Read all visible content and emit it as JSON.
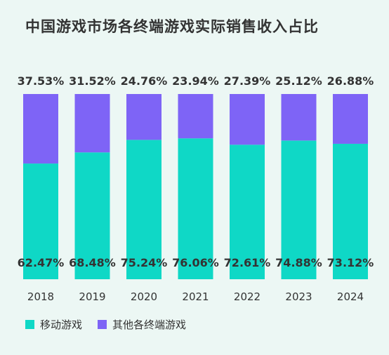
{
  "chart_data": {
    "type": "bar",
    "stacked": true,
    "title": "中国游戏市场各终端游戏实际销售收入占比",
    "categories": [
      "2018",
      "2019",
      "2020",
      "2021",
      "2022",
      "2023",
      "2024"
    ],
    "series": [
      {
        "name": "移动游戏",
        "color": "#0FD8C6",
        "values": [
          62.47,
          68.48,
          75.24,
          76.06,
          72.61,
          74.88,
          73.12
        ],
        "labels": [
          "62.47%",
          "68.48%",
          "75.24%",
          "76.06%",
          "72.61%",
          "74.88%",
          "73.12%"
        ]
      },
      {
        "name": "其他各终端游戏",
        "color": "#7E64F6",
        "values": [
          37.53,
          31.52,
          24.76,
          23.94,
          27.39,
          25.12,
          26.88
        ],
        "labels": [
          "37.53%",
          "31.52%",
          "24.76%",
          "23.94%",
          "27.39%",
          "25.12%",
          "26.88%"
        ]
      }
    ],
    "ylim": [
      0,
      100
    ],
    "grid": false,
    "legend_position": "bottom-left"
  }
}
